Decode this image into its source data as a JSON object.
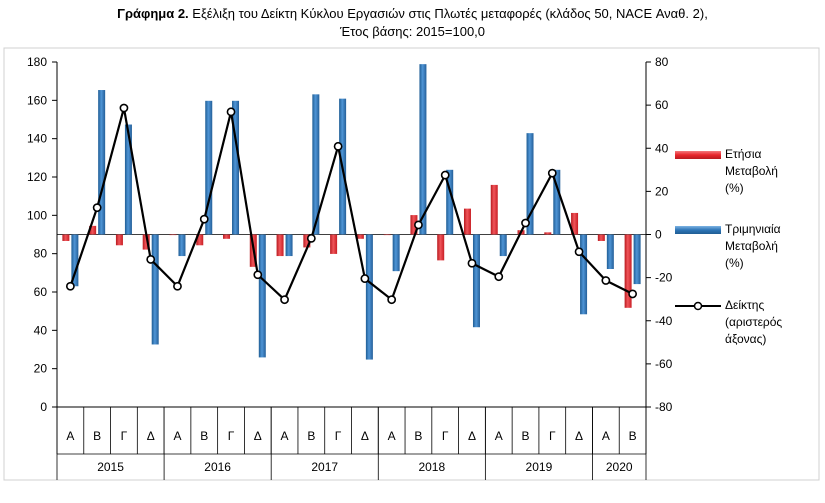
{
  "title": {
    "prefix": "Γράφημα 2.",
    "line1": "Εξέλιξη του Δείκτη Κύκλου Εργασιών στις Πλωτές μεταφορές (κλάδος 50, NACE Αναθ. 2),",
    "line2": "Έτος βάσης: 2015=100,0"
  },
  "legend": [
    {
      "key": "annual",
      "lines": [
        "Ετήσια",
        "Μεταβολή",
        "(%)"
      ],
      "color": "#e8262b"
    },
    {
      "key": "quarterly",
      "lines": [
        "Τριμηνιαία",
        "Μεταβολή",
        "(%)"
      ],
      "color": "#2e75b6"
    },
    {
      "key": "index",
      "lines": [
        "Δείκτης",
        "(αριστερός",
        "άξονας)"
      ],
      "color": "#000000"
    }
  ],
  "chart_data": {
    "type": "bar",
    "categories": [
      "Α",
      "Β",
      "Γ",
      "Δ",
      "Α",
      "Β",
      "Γ",
      "Δ",
      "Α",
      "Β",
      "Γ",
      "Δ",
      "Α",
      "Β",
      "Γ",
      "Δ",
      "Α",
      "Β",
      "Γ",
      "Δ",
      "Α",
      "Β"
    ],
    "years": [
      {
        "label": "2015",
        "quarters": 4
      },
      {
        "label": "2016",
        "quarters": 4
      },
      {
        "label": "2017",
        "quarters": 4
      },
      {
        "label": "2018",
        "quarters": 4
      },
      {
        "label": "2019",
        "quarters": 4
      },
      {
        "label": "2020",
        "quarters": 2
      }
    ],
    "left_axis": {
      "min": 0,
      "max": 180,
      "step": 20,
      "ticks": [
        "0",
        "20",
        "40",
        "60",
        "80",
        "100",
        "120",
        "140",
        "160",
        "180"
      ]
    },
    "right_axis": {
      "min": -80,
      "max": 80,
      "step": 20,
      "ticks": [
        "-80",
        "-60",
        "-40",
        "-20",
        "0",
        "20",
        "40",
        "60",
        "80"
      ]
    },
    "series": [
      {
        "name": "Ετήσια Μεταβολή (%)",
        "type": "bar",
        "axis": "right",
        "values": [
          -3,
          4,
          -5,
          -7,
          0,
          -5,
          -2,
          -15,
          -10,
          -6,
          -9,
          -2,
          0,
          9,
          -12,
          12,
          23,
          2,
          1,
          10,
          -3,
          -34
        ]
      },
      {
        "name": "Τριμηνιαία Μεταβολή (%)",
        "type": "bar",
        "axis": "right",
        "values": [
          -24,
          67,
          51,
          -51,
          -10,
          62,
          62,
          -57,
          -10,
          65,
          63,
          -58,
          -17,
          79,
          30,
          -43,
          -10,
          47,
          30,
          -37,
          -16,
          -23
        ]
      },
      {
        "name": "Δείκτης",
        "type": "line",
        "axis": "left",
        "values": [
          63,
          104,
          156,
          77,
          63,
          98,
          154,
          69,
          56,
          88,
          136,
          67,
          56,
          95,
          121,
          75,
          68,
          96,
          122,
          81,
          66,
          59
        ]
      }
    ],
    "grid": false,
    "legend_position": "right"
  }
}
